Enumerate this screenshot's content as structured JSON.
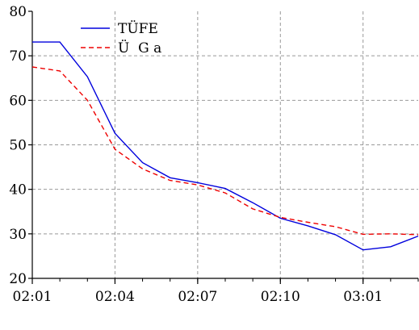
{
  "chart_data": {
    "type": "line",
    "x": [
      0,
      1,
      2,
      3,
      4,
      5,
      6,
      7,
      8,
      9,
      10,
      11,
      12,
      13,
      14
    ],
    "x_tick_positions": [
      0,
      3,
      6,
      9,
      12
    ],
    "x_tick_labels": [
      "02:01",
      "02:04",
      "02:07",
      "02:10",
      "03:01"
    ],
    "xlim": [
      0,
      14
    ],
    "ylim": [
      20,
      80
    ],
    "y_ticks": [
      20,
      30,
      40,
      50,
      60,
      70,
      80
    ],
    "grid": true,
    "legend": "top-left",
    "series": [
      {
        "name": "TÜFE",
        "color": "#0000dd",
        "dash": "solid",
        "values": [
          73.1,
          73.1,
          65.3,
          52.6,
          46.0,
          42.6,
          41.5,
          40.2,
          37.0,
          33.5,
          31.8,
          29.8,
          26.4,
          27.1,
          29.5
        ]
      },
      {
        "name": "Ü  G a",
        "color": "#ee0000",
        "dash": "dashed",
        "values": [
          67.5,
          66.6,
          60.0,
          49.0,
          44.6,
          42.0,
          41.0,
          39.2,
          35.6,
          33.7,
          32.6,
          31.6,
          29.9,
          30.0,
          29.8
        ]
      }
    ]
  }
}
